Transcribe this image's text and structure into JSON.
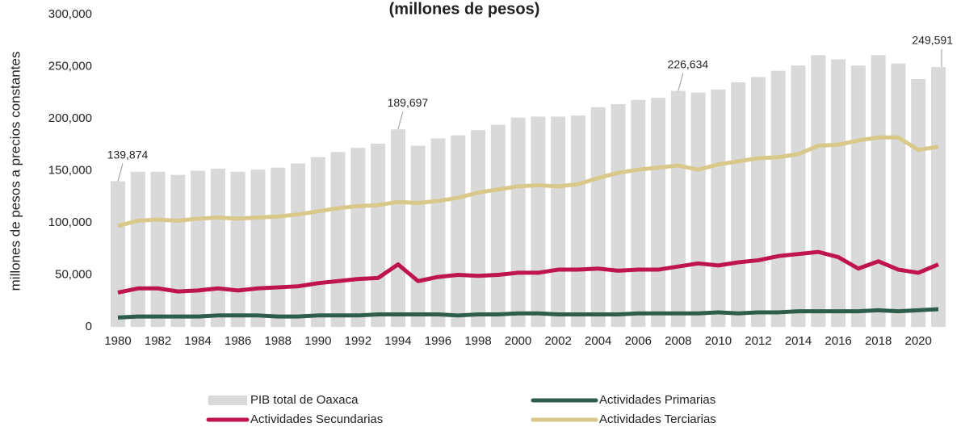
{
  "chart_data": {
    "type": "bar",
    "title": "(millones de pesos)",
    "y_label": "millones de pesos a precios constantes",
    "categories": [
      "1980",
      null,
      "1982",
      null,
      "1984",
      null,
      "1986",
      null,
      "1988",
      null,
      "1990",
      null,
      "1992",
      null,
      "1994",
      null,
      "1996",
      null,
      "1998",
      null,
      "2000",
      null,
      "2002",
      null,
      "2004",
      null,
      "2006",
      null,
      "2008",
      null,
      "2010",
      null,
      "2012",
      null,
      "2014",
      null,
      "2016",
      null,
      "2018",
      null,
      "2020",
      null
    ],
    "ylim": [
      0,
      300000
    ],
    "yticks": [
      {
        "value": 0,
        "label": "0"
      },
      {
        "value": 50000,
        "label": "50,000"
      },
      {
        "value": 100000,
        "label": "100,000"
      },
      {
        "value": 150000,
        "label": "150,000"
      },
      {
        "value": 200000,
        "label": "200,000"
      },
      {
        "value": 250000,
        "label": "250,000"
      },
      {
        "value": 300000,
        "label": "300,000"
      }
    ],
    "grid": false,
    "legend": "bottom",
    "series": [
      {
        "name": "PIB total de Oaxaca",
        "type": "bar",
        "color": "#d9d9d9",
        "values": [
          139874,
          149000,
          149000,
          146000,
          150000,
          152000,
          149000,
          151000,
          153000,
          157000,
          163000,
          168000,
          172000,
          176000,
          189697,
          174000,
          181000,
          184000,
          189000,
          194000,
          201000,
          202000,
          202000,
          203000,
          211000,
          214000,
          218000,
          220000,
          226634,
          225000,
          228000,
          235000,
          240000,
          246000,
          251000,
          261000,
          257000,
          251000,
          261000,
          253000,
          238000,
          249591
        ],
        "value_labels": [
          "139,874",
          null,
          null,
          null,
          null,
          null,
          null,
          null,
          null,
          null,
          null,
          null,
          null,
          null,
          "189,697",
          null,
          null,
          null,
          null,
          null,
          null,
          null,
          null,
          null,
          null,
          null,
          null,
          null,
          "226,634",
          null,
          null,
          null,
          null,
          null,
          null,
          null,
          null,
          null,
          null,
          null,
          null,
          "249,591"
        ]
      },
      {
        "name": "Actividades Primarias",
        "type": "line",
        "color": "#2e5e4a",
        "values": [
          9000,
          10000,
          10000,
          10000,
          10000,
          11000,
          11000,
          11000,
          10000,
          10000,
          11000,
          11000,
          11000,
          12000,
          12000,
          12000,
          12000,
          11000,
          12000,
          12000,
          13000,
          13000,
          12000,
          12000,
          12000,
          12000,
          13000,
          13000,
          13000,
          13000,
          14000,
          13000,
          14000,
          14000,
          15000,
          15000,
          15000,
          15000,
          16000,
          15000,
          16000,
          17000
        ]
      },
      {
        "name": "Actividades Secundarias",
        "type": "line",
        "color": "#c0144c",
        "values": [
          33000,
          37000,
          37000,
          34000,
          35000,
          37000,
          35000,
          37000,
          38000,
          39000,
          42000,
          44000,
          46000,
          47000,
          60000,
          44000,
          48000,
          50000,
          49000,
          50000,
          52000,
          52000,
          55000,
          55000,
          56000,
          54000,
          55000,
          55000,
          58000,
          61000,
          59000,
          62000,
          64000,
          68000,
          70000,
          72000,
          67000,
          56000,
          63000,
          55000,
          52000,
          60000
        ]
      },
      {
        "name": "Actividades Terciarias",
        "type": "line",
        "color": "#d8c88a",
        "values": [
          97000,
          102000,
          103000,
          102000,
          104000,
          105000,
          104000,
          105000,
          106000,
          108000,
          111000,
          114000,
          116000,
          117000,
          120000,
          119000,
          121000,
          124000,
          129000,
          132000,
          135000,
          136000,
          135000,
          137000,
          143000,
          148000,
          151000,
          153000,
          155000,
          151000,
          156000,
          159000,
          162000,
          163000,
          166000,
          174000,
          175000,
          179000,
          182000,
          182000,
          170000,
          173000
        ]
      }
    ]
  }
}
